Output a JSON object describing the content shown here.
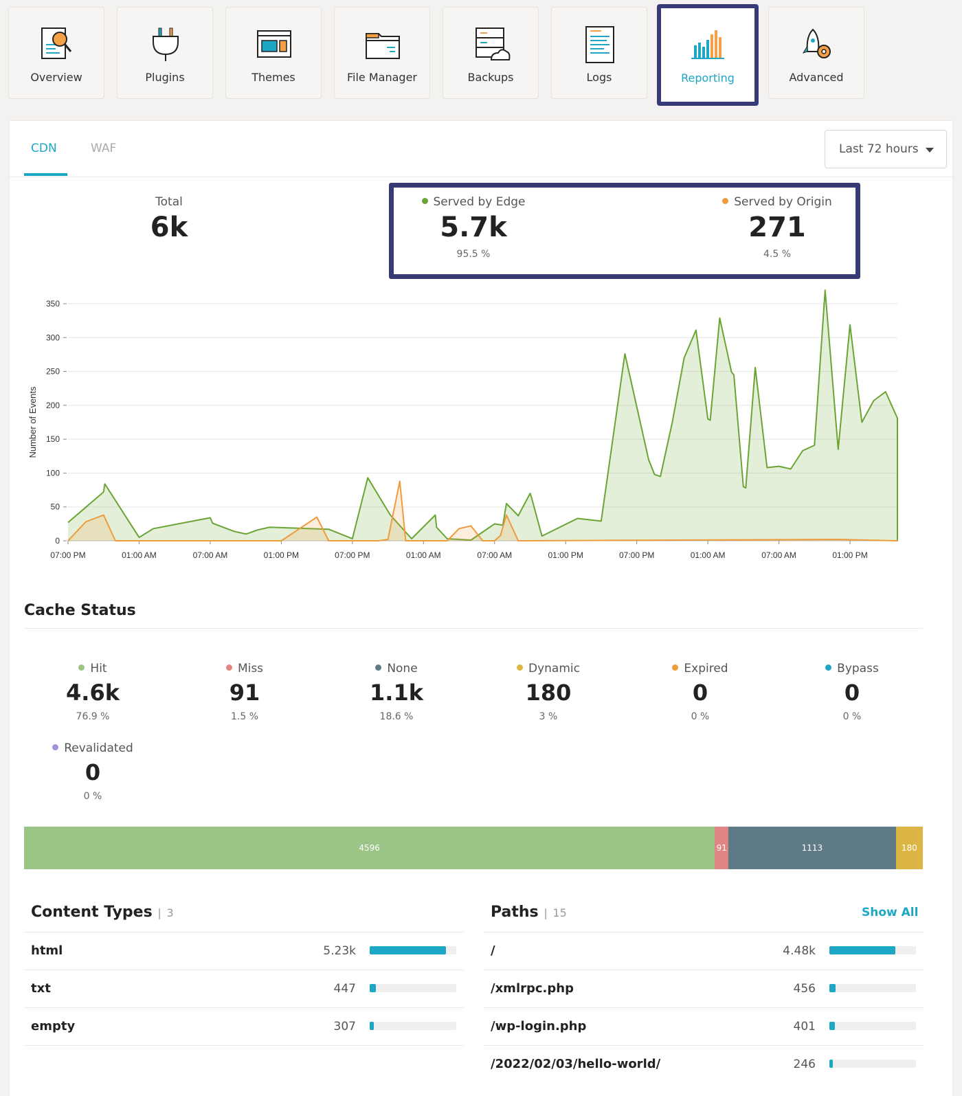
{
  "nav": [
    {
      "label": "Overview",
      "icon": "overview-magnifier-icon"
    },
    {
      "label": "Plugins",
      "icon": "plug-icon"
    },
    {
      "label": "Themes",
      "icon": "themes-window-icon"
    },
    {
      "label": "File Manager",
      "icon": "folder-icon"
    },
    {
      "label": "Backups",
      "icon": "server-cloud-icon"
    },
    {
      "label": "Logs",
      "icon": "document-lines-icon"
    },
    {
      "label": "Reporting",
      "icon": "bar-chart-icon",
      "active": true
    },
    {
      "label": "Advanced",
      "icon": "rocket-gear-icon"
    }
  ],
  "tabs": [
    {
      "label": "CDN",
      "active": true
    },
    {
      "label": "WAF"
    }
  ],
  "range": {
    "label": "Last 72 hours"
  },
  "summary": {
    "total": {
      "label": "Total",
      "value": "6k"
    },
    "edge": {
      "label": "Served by Edge",
      "value": "5.7k",
      "pct": "95.5 %",
      "color": "#6aa434"
    },
    "origin": {
      "label": "Served by Origin",
      "value": "271",
      "pct": "4.5 %",
      "color": "#ef9b3b"
    }
  },
  "chart_data": {
    "type": "area",
    "ylabel": "Number of Events",
    "ylim": [
      0,
      350
    ],
    "yticks": [
      0,
      50,
      100,
      150,
      200,
      250,
      300,
      350
    ],
    "x_ticks": [
      "07:00 PM",
      "01:00 AM",
      "07:00 AM",
      "01:00 PM",
      "07:00 PM",
      "01:00 AM",
      "07:00 AM",
      "01:00 PM",
      "07:00 PM",
      "01:00 AM",
      "07:00 AM",
      "01:00 PM"
    ],
    "x_hours": [
      0,
      6,
      12,
      18,
      24,
      30,
      36,
      42,
      48,
      54,
      60,
      66
    ],
    "x_range": [
      0,
      70
    ],
    "series": [
      {
        "name": "Served by Edge",
        "color": "#6aa434",
        "points": [
          [
            0,
            27
          ],
          [
            3,
            72
          ],
          [
            3.1,
            84
          ],
          [
            6,
            5
          ],
          [
            7.2,
            18
          ],
          [
            12,
            34
          ],
          [
            12.2,
            26
          ],
          [
            14,
            14
          ],
          [
            15,
            10
          ],
          [
            15.2,
            11
          ],
          [
            16,
            16
          ],
          [
            17,
            20
          ],
          [
            22,
            17
          ],
          [
            24,
            3
          ],
          [
            25.3,
            93
          ],
          [
            27.2,
            38
          ],
          [
            29,
            3
          ],
          [
            31,
            38
          ],
          [
            31.1,
            20
          ],
          [
            32,
            3
          ],
          [
            34,
            1
          ],
          [
            36,
            25
          ],
          [
            36.7,
            23
          ],
          [
            37,
            55
          ],
          [
            38,
            37
          ],
          [
            39,
            70
          ],
          [
            39.1,
            65
          ],
          [
            40,
            7
          ],
          [
            43,
            33
          ],
          [
            45,
            29
          ],
          [
            47,
            276
          ],
          [
            49,
            120
          ],
          [
            49.5,
            98
          ],
          [
            50,
            95
          ],
          [
            51,
            175
          ],
          [
            52,
            270
          ],
          [
            53,
            311
          ],
          [
            54,
            180
          ],
          [
            54.2,
            178
          ],
          [
            55,
            329
          ],
          [
            56,
            249
          ],
          [
            56.2,
            245
          ],
          [
            57,
            80
          ],
          [
            57.2,
            78
          ],
          [
            58,
            256
          ],
          [
            59,
            108
          ],
          [
            60,
            110
          ],
          [
            61,
            106
          ],
          [
            62,
            133
          ],
          [
            63,
            141
          ],
          [
            63.9,
            370
          ],
          [
            65,
            135
          ],
          [
            66,
            319
          ],
          [
            67,
            175
          ],
          [
            68,
            207
          ],
          [
            69,
            220
          ],
          [
            70,
            181
          ],
          [
            70,
            0
          ]
        ]
      },
      {
        "name": "Served by Origin",
        "color": "#ef9b3b",
        "points": [
          [
            0,
            0
          ],
          [
            1.5,
            28
          ],
          [
            3,
            38
          ],
          [
            4,
            0
          ],
          [
            18,
            0
          ],
          [
            21,
            35
          ],
          [
            22,
            0
          ],
          [
            26,
            0
          ],
          [
            26.2,
            0
          ],
          [
            27,
            2
          ],
          [
            28,
            88
          ],
          [
            28.5,
            0
          ],
          [
            32,
            0
          ],
          [
            33,
            18
          ],
          [
            34,
            22
          ],
          [
            35,
            0
          ],
          [
            36,
            0
          ],
          [
            36.5,
            8
          ],
          [
            37,
            38
          ],
          [
            38,
            0
          ],
          [
            70,
            0
          ],
          [
            65,
            2
          ],
          [
            70,
            1
          ]
        ]
      }
    ]
  },
  "cache": {
    "title": "Cache Status",
    "items": [
      {
        "label": "Hit",
        "value": "4.6k",
        "pct": "76.9 %",
        "color": "#9bc487"
      },
      {
        "label": "Miss",
        "value": "91",
        "pct": "1.5 %",
        "color": "#e08584"
      },
      {
        "label": "None",
        "value": "1.1k",
        "pct": "18.6 %",
        "color": "#5f7a87"
      },
      {
        "label": "Dynamic",
        "value": "180",
        "pct": "3 %",
        "color": "#ddb545"
      },
      {
        "label": "Expired",
        "value": "0",
        "pct": "0 %",
        "color": "#ef9b3b"
      },
      {
        "label": "Bypass",
        "value": "0",
        "pct": "0 %",
        "color": "#1da7c4"
      },
      {
        "label": "Revalidated",
        "value": "0",
        "pct": "0 %",
        "color": "#a98fd8"
      }
    ],
    "stack": [
      {
        "label": "4596",
        "value": 4596,
        "color": "#9bc487"
      },
      {
        "label": "91",
        "value": 91,
        "color": "#e08584"
      },
      {
        "label": "1113",
        "value": 1113,
        "color": "#5f7a87"
      },
      {
        "label": "180",
        "value": 180,
        "color": "#ddb545"
      }
    ]
  },
  "content_types": {
    "title": "Content Types",
    "count": "3",
    "rows": [
      {
        "label": "html",
        "value": "5.23k",
        "fill": 0.88
      },
      {
        "label": "txt",
        "value": "447",
        "fill": 0.075
      },
      {
        "label": "empty",
        "value": "307",
        "fill": 0.05
      }
    ]
  },
  "paths": {
    "title": "Paths",
    "count": "15",
    "show_all": "Show All",
    "rows": [
      {
        "label": "/",
        "value": "4.48k",
        "fill": 0.76
      },
      {
        "label": "/xmlrpc.php",
        "value": "456",
        "fill": 0.075
      },
      {
        "label": "/wp-login.php",
        "value": "401",
        "fill": 0.065
      },
      {
        "label": "/2022/02/03/hello-world/",
        "value": "246",
        "fill": 0.04
      }
    ]
  }
}
